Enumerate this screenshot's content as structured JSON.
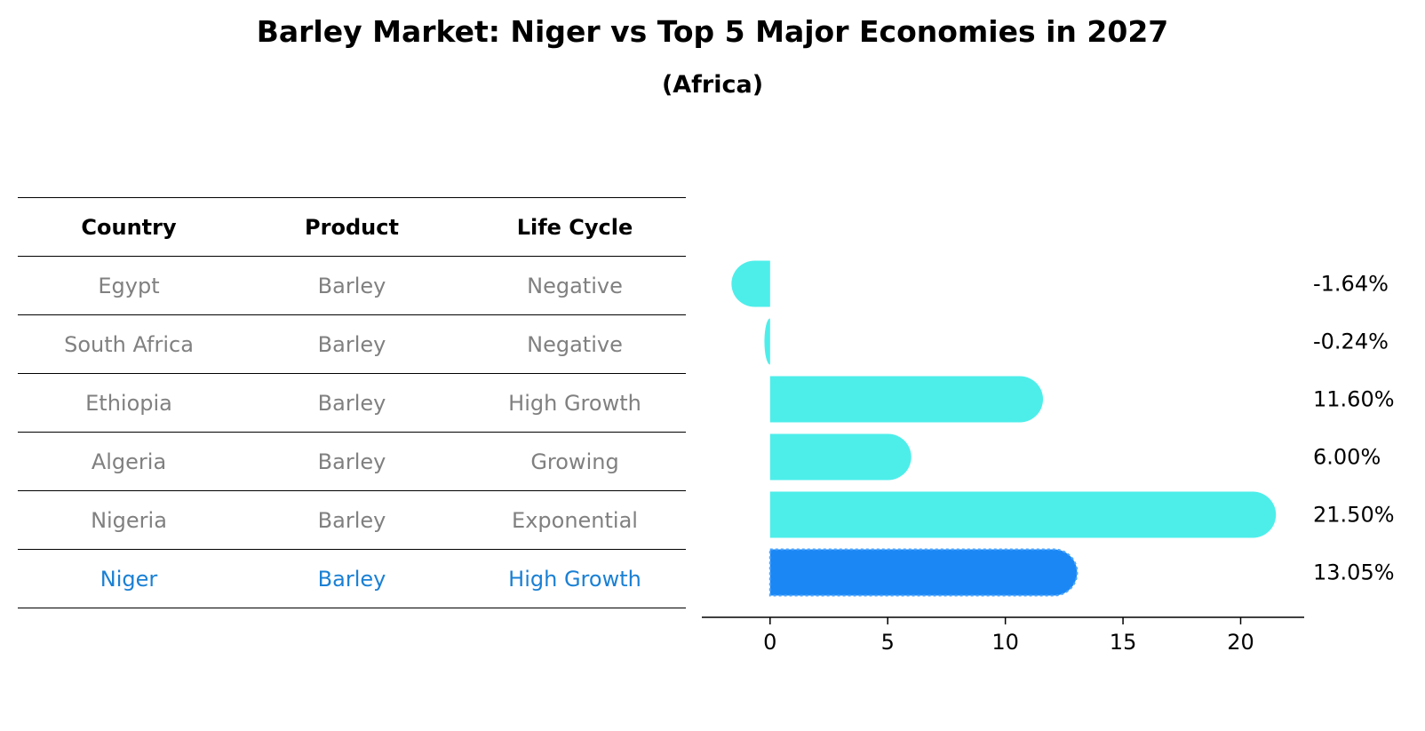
{
  "title": "Barley Market: Niger vs Top 5 Major Economies in 2027",
  "subtitle": "(Africa)",
  "table": {
    "headers": [
      "Country",
      "Product",
      "Life Cycle"
    ],
    "rows": [
      [
        "Egypt",
        "Barley",
        "Negative"
      ],
      [
        "South Africa",
        "Barley",
        "Negative"
      ],
      [
        "Ethiopia",
        "Barley",
        "High Growth"
      ],
      [
        "Algeria",
        "Barley",
        "Growing"
      ],
      [
        "Nigeria",
        "Barley",
        "Exponential"
      ],
      [
        "Niger",
        "Barley",
        "High Growth"
      ]
    ],
    "highlight_row": 5
  },
  "colors": {
    "bar": "#4deeea",
    "highlight_bar": "#1a87f5",
    "muted_text": "#808080",
    "highlight_text": "#1a80d4"
  },
  "chart_data": {
    "type": "bar",
    "orientation": "horizontal",
    "categories": [
      "Egypt",
      "South Africa",
      "Ethiopia",
      "Algeria",
      "Nigeria",
      "Niger"
    ],
    "values": [
      -1.64,
      -0.24,
      11.6,
      6.0,
      21.5,
      13.05
    ],
    "labels": [
      "-1.64%",
      "-0.24%",
      "11.60%",
      "6.00%",
      "21.50%",
      "13.05%"
    ],
    "highlight": "Niger",
    "xlim": [
      -2.9,
      22.7
    ],
    "xticks": [
      0,
      5,
      10,
      15,
      20
    ],
    "grid": false
  }
}
